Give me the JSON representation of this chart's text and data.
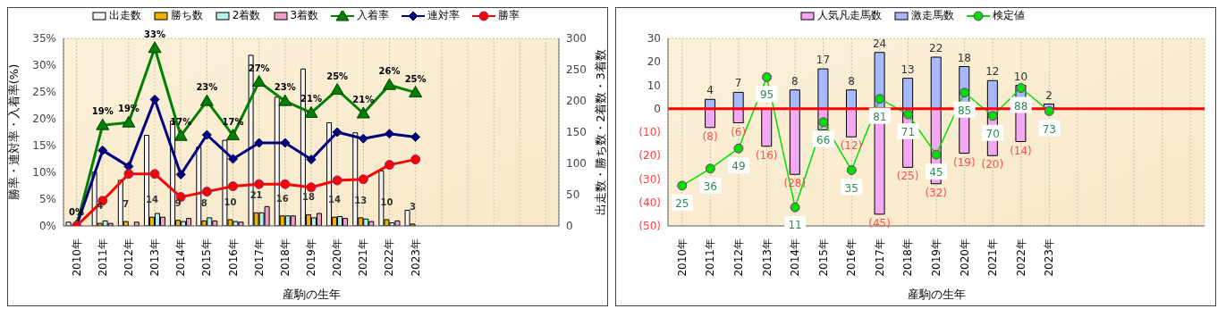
{
  "chart_data": [
    {
      "type": "bar",
      "xlabel": "産駒の生年",
      "ylabel": "勝率・連対率・入着率(%)",
      "y2label": "出走数・勝ち数・2着数・3着数",
      "grid": true,
      "legend": "top",
      "categories": [
        "2010年",
        "2011年",
        "2012年",
        "2013年",
        "2014年",
        "2015年",
        "2016年",
        "2017年",
        "2018年",
        "2019年",
        "2020年",
        "2021年",
        "2022年",
        "2023年",
        null,
        null,
        null,
        null,
        null
      ],
      "ylim": [
        0,
        35
      ],
      "yticks": [
        {
          "value": 0,
          "label": "0%"
        },
        {
          "value": 5,
          "label": "5%"
        },
        {
          "value": 10,
          "label": "10%"
        },
        {
          "value": 15,
          "label": "15%"
        },
        {
          "value": 20,
          "label": "20%"
        },
        {
          "value": 25,
          "label": "25%"
        },
        {
          "value": 30,
          "label": "30%"
        },
        {
          "value": 35,
          "label": "35%"
        }
      ],
      "y2lim": [
        0,
        300
      ],
      "y2ticks": [
        0,
        50,
        100,
        150,
        200,
        250,
        300
      ],
      "series": [
        {
          "name": "出走数",
          "axis": "y2",
          "color": "#f4f4f4",
          "values": [
            6,
            86,
            73,
            145,
            168,
            126,
            137,
            273,
            206,
            251,
            165,
            149,
            88,
            25,
            null,
            null,
            null,
            null,
            null
          ]
        },
        {
          "name": "勝ち数",
          "axis": "y2",
          "color": "#f0b400",
          "values": [
            0,
            4,
            7,
            14,
            9,
            8,
            10,
            21,
            16,
            18,
            14,
            13,
            10,
            3,
            null,
            null,
            null,
            null,
            null
          ],
          "value_labels": [
            null,
            "4",
            "7",
            "14",
            "9",
            "8",
            "10",
            "21",
            "16",
            "18",
            "14",
            "13",
            "10",
            "3",
            null,
            null,
            null,
            null,
            null
          ]
        },
        {
          "name": "2着数",
          "axis": "y2",
          "color": "#b4f0f0",
          "values": [
            0,
            8,
            null,
            20,
            7,
            13,
            7,
            21,
            16,
            13,
            15,
            11,
            5,
            null,
            null,
            null,
            null,
            null,
            null
          ]
        },
        {
          "name": "3着数",
          "axis": "y2",
          "color": "#f0a0c8",
          "values": [
            0,
            4,
            6,
            14,
            12,
            8,
            6,
            31,
            16,
            20,
            12,
            7,
            8,
            null,
            null,
            null,
            null,
            null,
            null
          ]
        },
        {
          "name": "入着率",
          "type": "line",
          "marker": "triangle",
          "color": "#008000",
          "values": [
            0,
            18.8,
            19.3,
            33.2,
            16.8,
            23.3,
            16.9,
            26.9,
            23.3,
            21.1,
            25.4,
            21.0,
            26.3,
            24.9,
            null,
            null,
            null,
            null,
            null
          ],
          "value_labels": [
            "0%",
            "19%",
            "19%",
            "33%",
            "17%",
            "23%",
            "17%",
            "27%",
            "23%",
            "21%",
            "25%",
            "21%",
            "26%",
            "25%",
            null,
            null,
            null,
            null,
            null
          ]
        },
        {
          "name": "連対率",
          "type": "line",
          "marker": "diamond",
          "color": "#000080",
          "values": [
            0,
            14.1,
            11.1,
            23.6,
            9.6,
            17.0,
            12.5,
            15.5,
            15.5,
            12.4,
            17.5,
            16.3,
            17.2,
            16.6,
            null,
            null,
            null,
            null,
            null
          ]
        },
        {
          "name": "勝率",
          "type": "line",
          "marker": "circle",
          "color": "#ff0000",
          "values": [
            0,
            4.7,
            9.7,
            9.7,
            5.4,
            6.4,
            7.4,
            7.8,
            7.8,
            7.2,
            8.5,
            8.7,
            11.4,
            12.4,
            null,
            null,
            null,
            null,
            null
          ]
        }
      ]
    },
    {
      "type": "bar",
      "stacked": true,
      "xlabel": "産駒の生年",
      "grid": true,
      "legend": "top",
      "categories": [
        "2010年",
        "2011年",
        "2012年",
        "2013年",
        "2014年",
        "2015年",
        "2016年",
        "2017年",
        "2018年",
        "2019年",
        "2020年",
        "2021年",
        "2022年",
        "2023年",
        null,
        null,
        null,
        null,
        null
      ],
      "ylim": [
        -50,
        30
      ],
      "yticks": [
        {
          "value": -50,
          "label": "(50)"
        },
        {
          "value": -40,
          "label": "(40)"
        },
        {
          "value": -30,
          "label": "(30)"
        },
        {
          "value": -20,
          "label": "(20)"
        },
        {
          "value": -10,
          "label": "(10)"
        },
        0,
        10,
        20,
        30
      ],
      "y2lim": [
        -1,
        120
      ],
      "ref_lines": [
        {
          "axis": "y",
          "value": 0,
          "color": "#ff0000"
        }
      ],
      "series": [
        {
          "name": "人気凡走馬数",
          "color": "#f4a8f4",
          "values": [
            null,
            -8,
            -6,
            -16,
            -28,
            -9,
            -12,
            -45,
            -25,
            -32,
            -19,
            -20,
            -14,
            null,
            null,
            null,
            null,
            null,
            null
          ],
          "value_labels": [
            null,
            "(8)",
            "(6)",
            "(16)",
            "(28)",
            null,
            "(12)",
            "(45)",
            "(25)",
            "(32)",
            "(19)",
            "(20)",
            "(14)",
            null,
            null,
            null,
            null,
            null,
            null
          ]
        },
        {
          "name": "激走馬数",
          "color": "#a8b8ff",
          "values": [
            null,
            4,
            7,
            null,
            8,
            17,
            8,
            24,
            13,
            22,
            18,
            12,
            10,
            2,
            null,
            null,
            null,
            null,
            null
          ],
          "value_labels": [
            null,
            "4",
            "7",
            null,
            "8",
            "17",
            "8",
            "24",
            "13",
            "22",
            "18",
            "12",
            "10",
            "2",
            null,
            null,
            null,
            null,
            null
          ]
        },
        {
          "name": "検定値",
          "type": "line",
          "axis": "y2",
          "marker": "circle",
          "color": "#00dd00",
          "values": [
            25,
            36,
            49,
            95,
            11,
            66,
            35,
            81,
            71,
            45,
            85,
            70,
            88,
            73,
            null,
            null,
            null,
            null,
            null
          ]
        }
      ],
      "data_labels": true
    }
  ]
}
